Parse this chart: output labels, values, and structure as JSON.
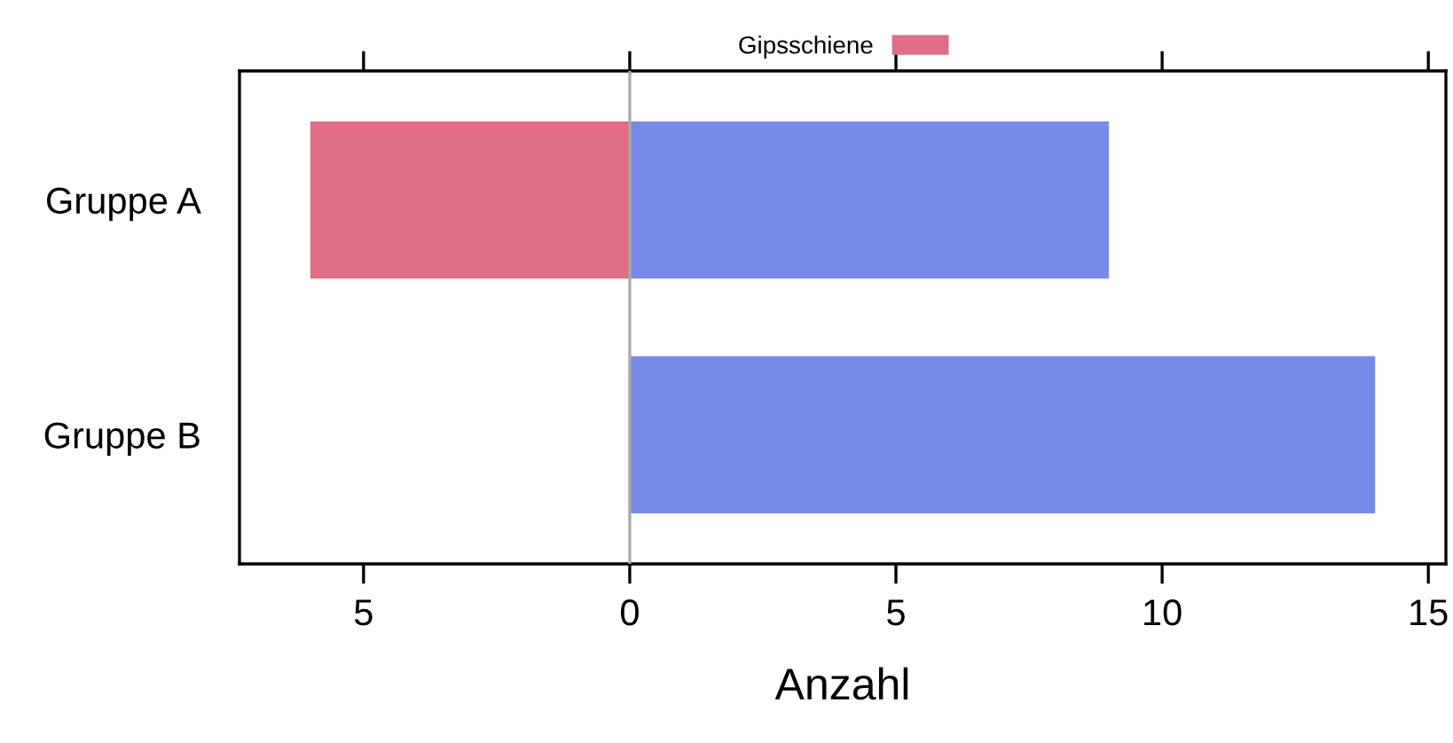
{
  "chart_data": {
    "type": "bar",
    "orientation": "horizontal",
    "stacked": true,
    "xlabel": "Anzahl",
    "categories": [
      "Gruppe A",
      "Gruppe B"
    ],
    "series": [
      {
        "name": "Gipsschiene",
        "color": "#e06c85",
        "values": [
          -6,
          null
        ]
      },
      {
        "color": "#768be8",
        "values": [
          9,
          14
        ]
      }
    ],
    "xlim": [
      -7.33,
      15.33
    ],
    "xticks": [
      {
        "value": -5,
        "label": "5"
      },
      0,
      5,
      10,
      15
    ],
    "ref_lines": [
      {
        "axis": "x",
        "value": 0,
        "color": "#aaaaaa"
      }
    ],
    "legend": "top",
    "grid": false
  }
}
